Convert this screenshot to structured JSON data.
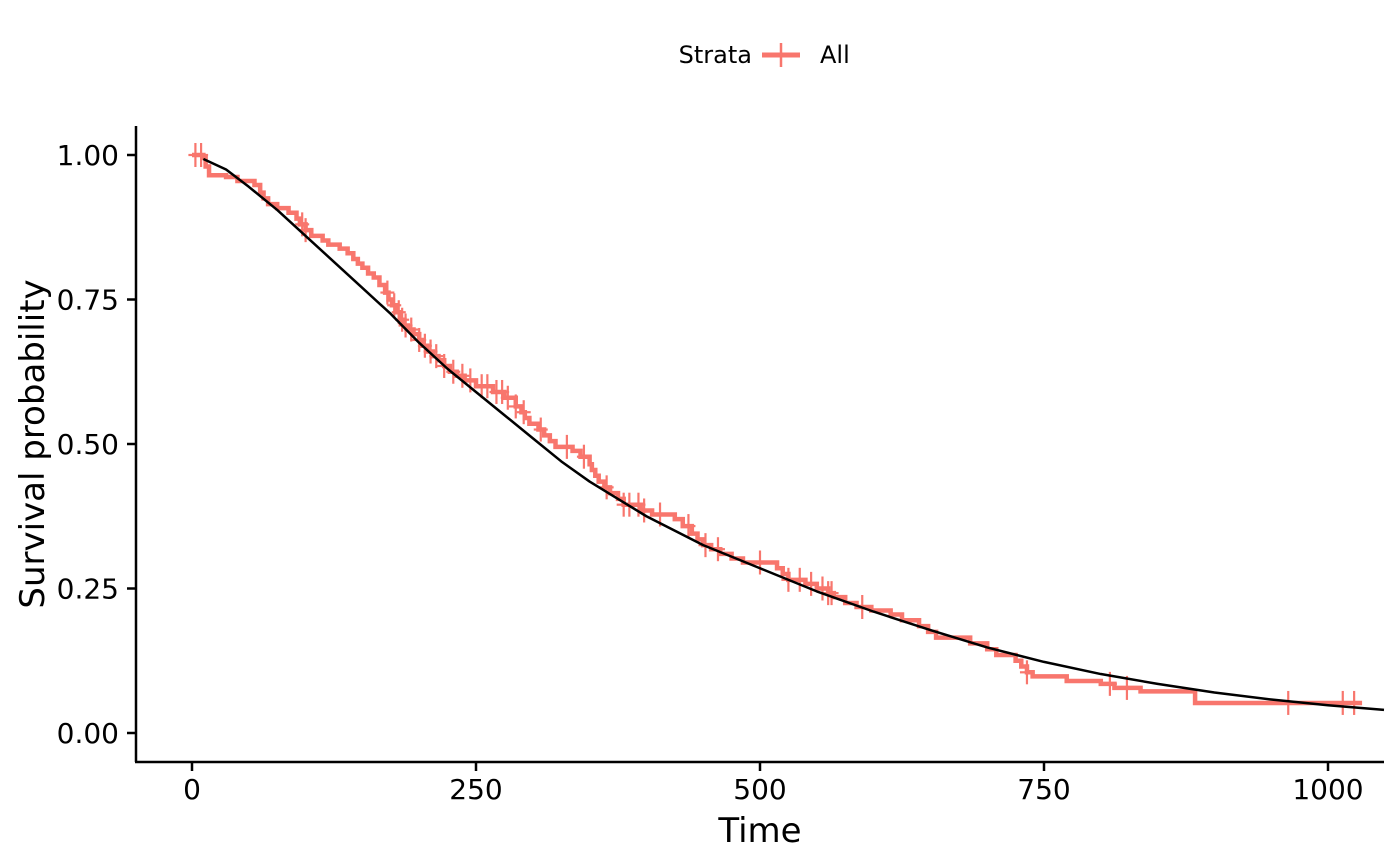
{
  "chart_data": {
    "type": "line",
    "xlabel": "Time",
    "ylabel": "Survival probability",
    "xlim": [
      -50,
      1050
    ],
    "ylim": [
      -0.05,
      1.05
    ],
    "x_ticks": [
      0,
      250,
      500,
      750,
      1000
    ],
    "x_tick_labels": [
      "0",
      "250",
      "500",
      "750",
      "1000"
    ],
    "y_ticks": [
      0,
      0.25,
      0.5,
      0.75,
      1.0
    ],
    "y_tick_labels": [
      "0.00",
      "0.25",
      "0.50",
      "0.75",
      "1.00"
    ],
    "grid": false,
    "legend": {
      "position": "top-center",
      "title": "Strata",
      "entries": [
        {
          "label": "All",
          "color": "#F8766D"
        }
      ]
    },
    "series": [
      {
        "name": "All",
        "kind": "step",
        "color": "#F8766D",
        "points": [
          [
            0,
            1.0
          ],
          [
            10,
            0.995
          ],
          [
            12,
            0.98
          ],
          [
            15,
            0.965
          ],
          [
            30,
            0.962
          ],
          [
            40,
            0.955
          ],
          [
            55,
            0.948
          ],
          [
            60,
            0.935
          ],
          [
            63,
            0.925
          ],
          [
            67,
            0.915
          ],
          [
            75,
            0.908
          ],
          [
            85,
            0.9
          ],
          [
            92,
            0.89
          ],
          [
            95,
            0.88
          ],
          [
            100,
            0.87
          ],
          [
            105,
            0.86
          ],
          [
            115,
            0.852
          ],
          [
            120,
            0.845
          ],
          [
            130,
            0.838
          ],
          [
            137,
            0.83
          ],
          [
            142,
            0.82
          ],
          [
            146,
            0.812
          ],
          [
            150,
            0.805
          ],
          [
            155,
            0.795
          ],
          [
            160,
            0.788
          ],
          [
            165,
            0.775
          ],
          [
            170,
            0.762
          ],
          [
            173,
            0.75
          ],
          [
            176,
            0.74
          ],
          [
            180,
            0.728
          ],
          [
            183,
            0.715
          ],
          [
            187,
            0.705
          ],
          [
            190,
            0.698
          ],
          [
            195,
            0.69
          ],
          [
            200,
            0.68
          ],
          [
            203,
            0.67
          ],
          [
            207,
            0.66
          ],
          [
            212,
            0.652
          ],
          [
            217,
            0.645
          ],
          [
            222,
            0.635
          ],
          [
            227,
            0.625
          ],
          [
            233,
            0.618
          ],
          [
            240,
            0.61
          ],
          [
            250,
            0.6
          ],
          [
            265,
            0.59
          ],
          [
            275,
            0.58
          ],
          [
            285,
            0.565
          ],
          [
            290,
            0.555
          ],
          [
            293,
            0.545
          ],
          [
            297,
            0.535
          ],
          [
            305,
            0.525
          ],
          [
            310,
            0.515
          ],
          [
            315,
            0.505
          ],
          [
            320,
            0.495
          ],
          [
            335,
            0.488
          ],
          [
            342,
            0.478
          ],
          [
            350,
            0.465
          ],
          [
            352,
            0.455
          ],
          [
            355,
            0.445
          ],
          [
            358,
            0.435
          ],
          [
            363,
            0.425
          ],
          [
            368,
            0.415
          ],
          [
            375,
            0.405
          ],
          [
            380,
            0.395
          ],
          [
            395,
            0.385
          ],
          [
            405,
            0.378
          ],
          [
            425,
            0.37
          ],
          [
            432,
            0.358
          ],
          [
            440,
            0.345
          ],
          [
            445,
            0.335
          ],
          [
            450,
            0.325
          ],
          [
            457,
            0.318
          ],
          [
            465,
            0.31
          ],
          [
            475,
            0.302
          ],
          [
            485,
            0.295
          ],
          [
            515,
            0.285
          ],
          [
            520,
            0.275
          ],
          [
            525,
            0.265
          ],
          [
            540,
            0.258
          ],
          [
            550,
            0.25
          ],
          [
            560,
            0.242
          ],
          [
            565,
            0.235
          ],
          [
            575,
            0.225
          ],
          [
            585,
            0.218
          ],
          [
            598,
            0.212
          ],
          [
            615,
            0.205
          ],
          [
            625,
            0.195
          ],
          [
            640,
            0.185
          ],
          [
            648,
            0.175
          ],
          [
            655,
            0.165
          ],
          [
            685,
            0.155
          ],
          [
            700,
            0.145
          ],
          [
            708,
            0.135
          ],
          [
            725,
            0.125
          ],
          [
            730,
            0.115
          ],
          [
            735,
            0.105
          ],
          [
            740,
            0.098
          ],
          [
            770,
            0.09
          ],
          [
            800,
            0.085
          ],
          [
            812,
            0.078
          ],
          [
            835,
            0.072
          ],
          [
            883,
            0.052
          ],
          [
            1030,
            0.052
          ]
        ],
        "censored_times": [
          3,
          8,
          97,
          100,
          172,
          178,
          182,
          185,
          188,
          193,
          200,
          205,
          210,
          215,
          222,
          230,
          238,
          245,
          255,
          260,
          268,
          273,
          278,
          285,
          292,
          307,
          330,
          345,
          365,
          380,
          385,
          393,
          398,
          412,
          437,
          452,
          463,
          500,
          525,
          535,
          545,
          555,
          560,
          563,
          590,
          735,
          808,
          823,
          965,
          1013,
          1023
        ]
      },
      {
        "name": "",
        "kind": "curve",
        "color": "#000000",
        "x": [
          10,
          30,
          50,
          75,
          100,
          125,
          150,
          175,
          200,
          225,
          250,
          275,
          300,
          325,
          350,
          375,
          400,
          450,
          500,
          550,
          600,
          650,
          700,
          750,
          800,
          850,
          900,
          950,
          1000,
          1050
        ],
        "y": [
          0.993,
          0.975,
          0.945,
          0.905,
          0.86,
          0.815,
          0.77,
          0.725,
          0.675,
          0.63,
          0.59,
          0.55,
          0.51,
          0.47,
          0.435,
          0.405,
          0.375,
          0.325,
          0.285,
          0.245,
          0.21,
          0.178,
          0.148,
          0.123,
          0.102,
          0.085,
          0.07,
          0.058,
          0.048,
          0.04
        ]
      }
    ]
  }
}
